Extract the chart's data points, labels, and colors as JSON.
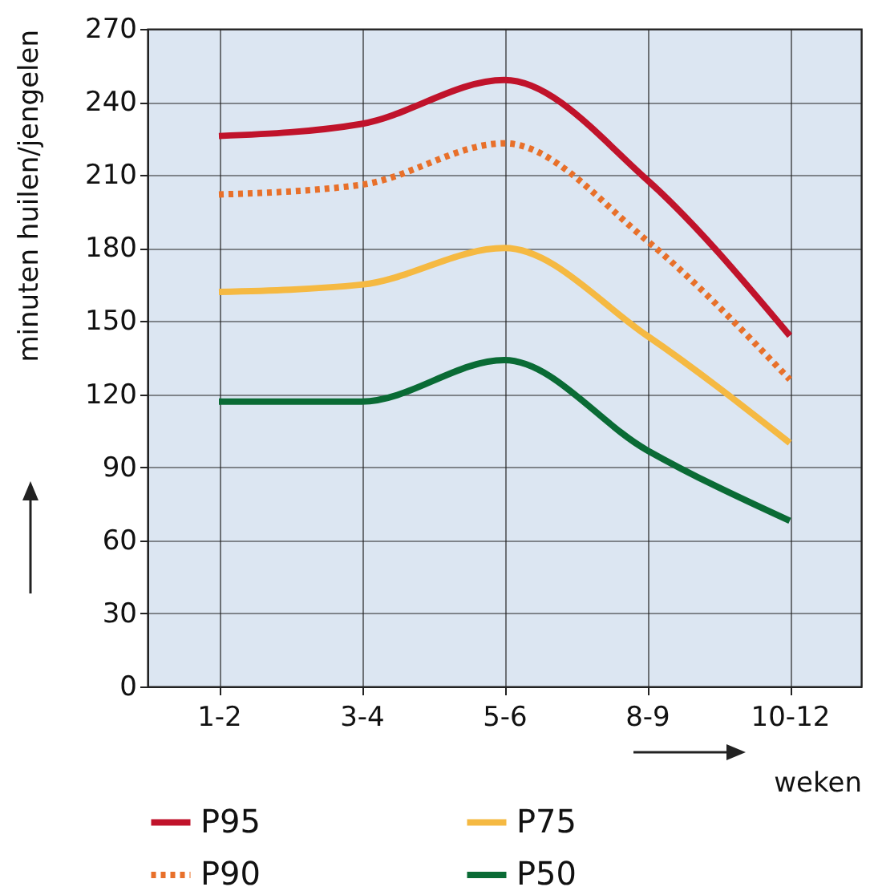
{
  "chart_data": {
    "type": "line",
    "xlabel": "weken",
    "ylabel": "minuten huilen/jengelen",
    "categories": [
      "1-2",
      "3-4",
      "5-6",
      "8-9",
      "10-12"
    ],
    "series": [
      {
        "name": "P95",
        "color": "#c0132b",
        "values": [
          226,
          231,
          249,
          208,
          144
        ],
        "line_style": "solid"
      },
      {
        "name": "P75",
        "color": "#f5b942",
        "values": [
          162,
          165,
          180,
          144,
          100
        ],
        "line_style": "solid"
      },
      {
        "name": "P90",
        "color": "#e8702a",
        "values": [
          202,
          206,
          223,
          183,
          126
        ],
        "line_style": "dotted"
      },
      {
        "name": "P50",
        "color": "#0a6b35",
        "values": [
          117,
          117,
          134,
          97,
          68
        ],
        "line_style": "solid"
      }
    ],
    "ylim": [
      0,
      270
    ],
    "yticks": [
      0,
      30,
      60,
      90,
      120,
      150,
      180,
      210,
      240,
      270
    ],
    "grid": true,
    "legend": "bottom",
    "marker": "none"
  }
}
